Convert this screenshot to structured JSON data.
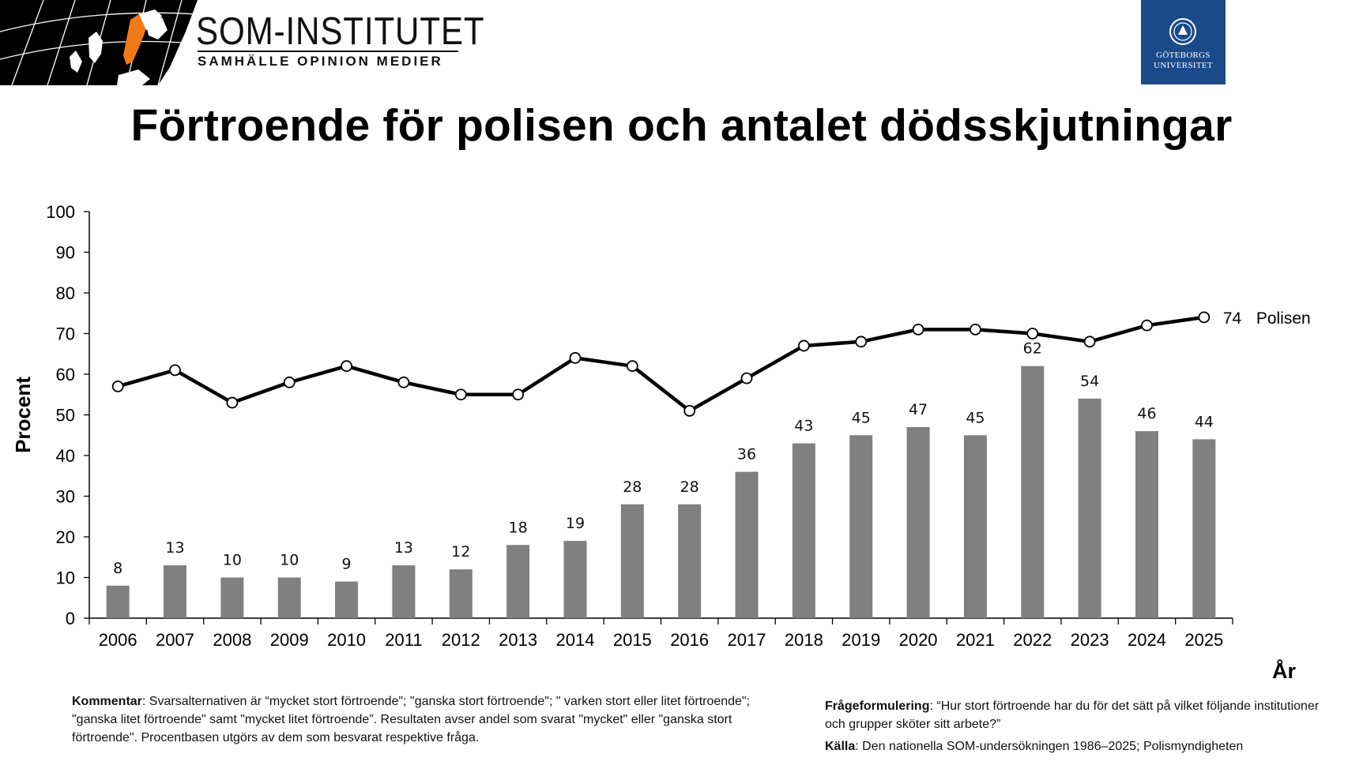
{
  "header": {
    "brand_title": "SOM-INSTITUTET",
    "brand_subtitle": "SAMHÄLLE  OPINION  MEDIER",
    "university": [
      "GÖTEBORGS",
      "UNIVERSITET"
    ]
  },
  "title": "Förtroende för polisen och antalet dödsskjutningar",
  "chart_data": {
    "type": "bar",
    "categories": [
      "2006",
      "2007",
      "2008",
      "2009",
      "2010",
      "2011",
      "2012",
      "2013",
      "2014",
      "2015",
      "2016",
      "2017",
      "2018",
      "2019",
      "2020",
      "2021",
      "2022",
      "2023",
      "2024",
      "2025"
    ],
    "series": [
      {
        "type": "bar",
        "values": [
          8,
          13,
          10,
          10,
          9,
          13,
          12,
          18,
          19,
          28,
          28,
          36,
          43,
          45,
          47,
          45,
          62,
          54,
          46,
          44
        ],
        "color": "#808080"
      },
      {
        "type": "line",
        "name": "Polisen",
        "values": [
          57,
          61,
          53,
          58,
          62,
          58,
          55,
          55,
          64,
          62,
          51,
          59,
          67,
          68,
          71,
          71,
          70,
          68,
          72,
          74
        ],
        "color": "#000000",
        "end_label": "74"
      }
    ],
    "ylabel": "Procent",
    "xlabel": "År",
    "ylim": [
      0,
      100
    ],
    "yticks": [
      0,
      10,
      20,
      30,
      40,
      50,
      60,
      70,
      80,
      90,
      100
    ],
    "grid": false
  },
  "notes": {
    "kommentar_label": "Kommentar",
    "kommentar_text": ": Svarsalternativen är “mycket stort förtroende\"; \"ganska stort förtroende\"; \" varken stort eller litet förtroende\"; \"ganska litet förtroende\" samt \"mycket litet förtroende”. Resultaten avser andel som svarat \"mycket\" eller \"ganska stort förtroende\". Procentbasen utgörs av dem som besvarat respektive fråga.",
    "fraga_label": "Frågeformulering",
    "fraga_text": ": “Hur stort förtroende har du för det sätt på vilket följande institutioner och grupper sköter sitt arbete?”",
    "kalla_label": "Källa",
    "kalla_text": ": Den nationella SOM-undersökningen 1986–2025; Polismyndigheten"
  }
}
